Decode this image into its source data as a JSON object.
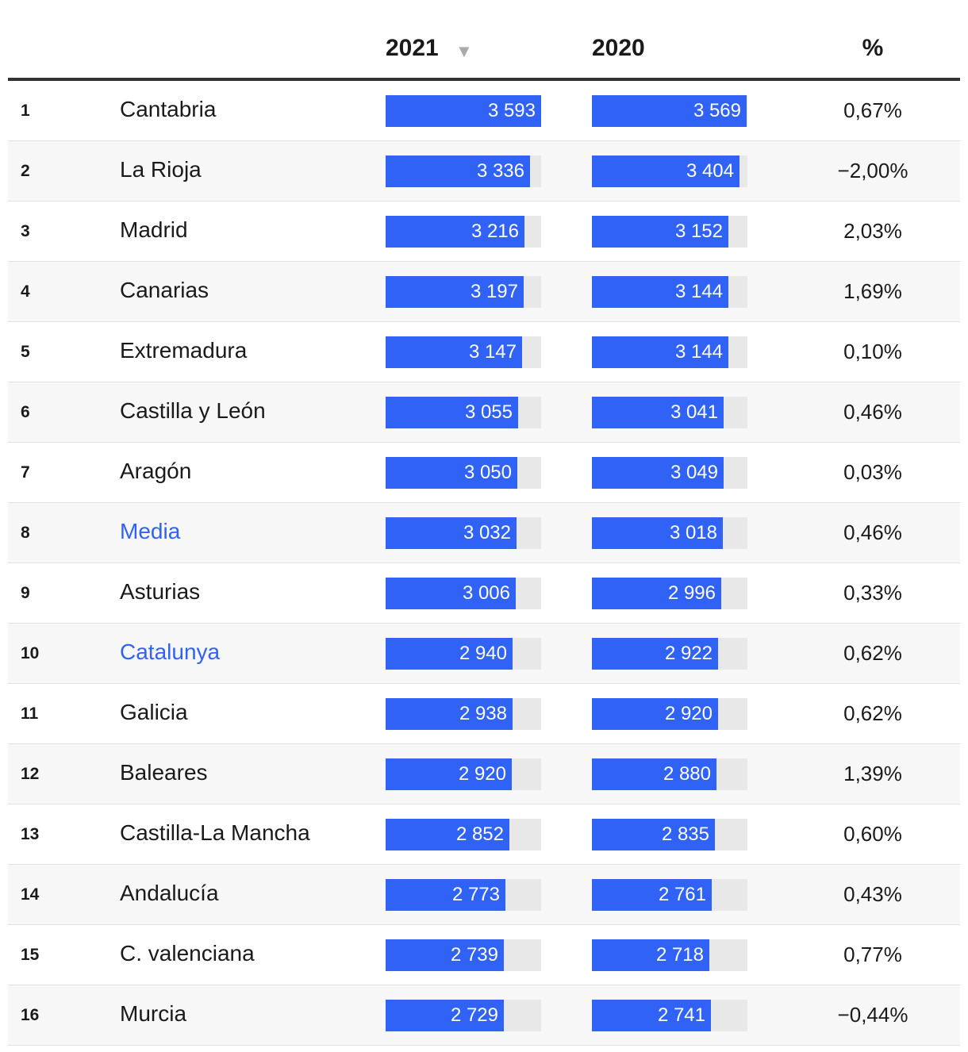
{
  "chart_data": {
    "type": "table",
    "columns": {
      "c2021": "2021",
      "c2020": "2020",
      "pct": "%"
    },
    "sorted_column": "2021",
    "sort_direction": "descending",
    "bar_max": 3593,
    "colors": {
      "bar": "#2f62f5",
      "track": "#e8e8e8",
      "highlight": "#2f62f5",
      "row_alt": "#f7f7f7"
    },
    "rows": [
      {
        "rank": "1",
        "name": "Cantabria",
        "v2021": 3593,
        "l2021": "3 593",
        "v2020": 3569,
        "l2020": "3 569",
        "pct": "0,67%",
        "highlight": false
      },
      {
        "rank": "2",
        "name": "La Rioja",
        "v2021": 3336,
        "l2021": "3 336",
        "v2020": 3404,
        "l2020": "3 404",
        "pct": "−2,00%",
        "highlight": false
      },
      {
        "rank": "3",
        "name": "Madrid",
        "v2021": 3216,
        "l2021": "3 216",
        "v2020": 3152,
        "l2020": "3 152",
        "pct": "2,03%",
        "highlight": false
      },
      {
        "rank": "4",
        "name": "Canarias",
        "v2021": 3197,
        "l2021": "3 197",
        "v2020": 3144,
        "l2020": "3 144",
        "pct": "1,69%",
        "highlight": false
      },
      {
        "rank": "5",
        "name": "Extremadura",
        "v2021": 3147,
        "l2021": "3 147",
        "v2020": 3144,
        "l2020": "3 144",
        "pct": "0,10%",
        "highlight": false
      },
      {
        "rank": "6",
        "name": "Castilla y León",
        "v2021": 3055,
        "l2021": "3 055",
        "v2020": 3041,
        "l2020": "3 041",
        "pct": "0,46%",
        "highlight": false
      },
      {
        "rank": "7",
        "name": "Aragón",
        "v2021": 3050,
        "l2021": "3 050",
        "v2020": 3049,
        "l2020": "3 049",
        "pct": "0,03%",
        "highlight": false
      },
      {
        "rank": "8",
        "name": "Media",
        "v2021": 3032,
        "l2021": "3 032",
        "v2020": 3018,
        "l2020": "3 018",
        "pct": "0,46%",
        "highlight": true
      },
      {
        "rank": "9",
        "name": "Asturias",
        "v2021": 3006,
        "l2021": "3 006",
        "v2020": 2996,
        "l2020": "2 996",
        "pct": "0,33%",
        "highlight": false
      },
      {
        "rank": "10",
        "name": "Catalunya",
        "v2021": 2940,
        "l2021": "2 940",
        "v2020": 2922,
        "l2020": "2 922",
        "pct": "0,62%",
        "highlight": true
      },
      {
        "rank": "11",
        "name": "Galicia",
        "v2021": 2938,
        "l2021": "2 938",
        "v2020": 2920,
        "l2020": "2 920",
        "pct": "0,62%",
        "highlight": false
      },
      {
        "rank": "12",
        "name": "Baleares",
        "v2021": 2920,
        "l2021": "2 920",
        "v2020": 2880,
        "l2020": "2 880",
        "pct": "1,39%",
        "highlight": false
      },
      {
        "rank": "13",
        "name": "Castilla-La Mancha",
        "v2021": 2852,
        "l2021": "2 852",
        "v2020": 2835,
        "l2020": "2 835",
        "pct": "0,60%",
        "highlight": false
      },
      {
        "rank": "14",
        "name": "Andalucía",
        "v2021": 2773,
        "l2021": "2 773",
        "v2020": 2761,
        "l2020": "2 761",
        "pct": "0,43%",
        "highlight": false
      },
      {
        "rank": "15",
        "name": "C. valenciana",
        "v2021": 2739,
        "l2021": "2 739",
        "v2020": 2718,
        "l2020": "2 718",
        "pct": "0,77%",
        "highlight": false
      },
      {
        "rank": "16",
        "name": "Murcia",
        "v2021": 2729,
        "l2021": "2 729",
        "v2020": 2741,
        "l2020": "2 741",
        "pct": "−0,44%",
        "highlight": false
      }
    ]
  }
}
